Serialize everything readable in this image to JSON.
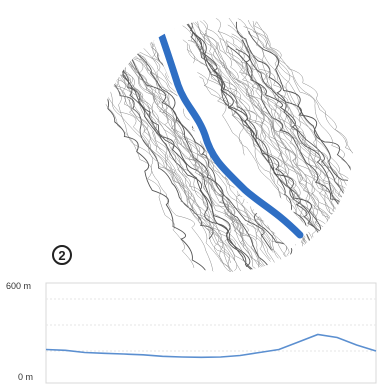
{
  "step_number": "2",
  "profile": {
    "y_max_label": "600 m",
    "y_min_label": "0 m",
    "ylim": [
      0,
      600
    ],
    "route_color": "#2f6fc4",
    "line_color": "#5b8fd0",
    "elevation_m": [
      190,
      185,
      170,
      165,
      160,
      155,
      145,
      140,
      138,
      140,
      150,
      170,
      190,
      240,
      290,
      270,
      220,
      180
    ]
  }
}
